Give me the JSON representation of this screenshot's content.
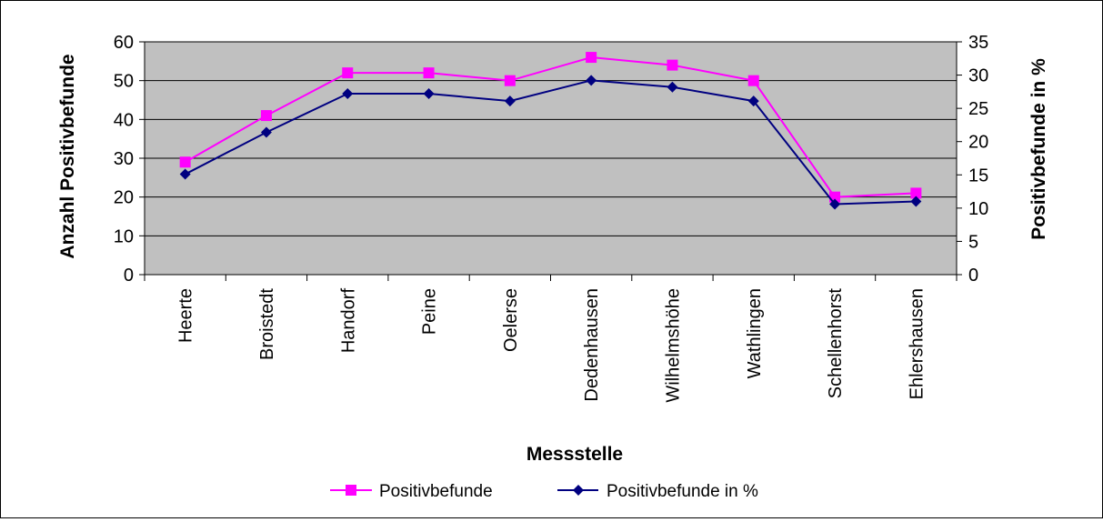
{
  "chart_data": {
    "type": "line",
    "xlabel": "Messstelle",
    "ylabel": "Anzahl Positivbefunde",
    "y2label": "Positivbefunde in %",
    "categories": [
      "Heerte",
      "Broistedt",
      "Handorf",
      "Peine",
      "Oelerse",
      "Dedenhausen",
      "Wilhelmshöhe",
      "Wathlingen",
      "Schellenhorst",
      "Ehlershausen"
    ],
    "ylim": [
      0,
      60
    ],
    "y2lim": [
      0,
      35
    ],
    "yticks": [
      0,
      10,
      20,
      30,
      40,
      50,
      60
    ],
    "y2ticks": [
      0,
      5,
      10,
      15,
      20,
      25,
      30,
      35
    ],
    "grid": true,
    "legend_position": "bottom",
    "plot_background": "#c0c0c0",
    "series": [
      {
        "name": "Positivbefunde",
        "axis": "left",
        "color": "#ff00ff",
        "marker": "square",
        "values": [
          29,
          41,
          52,
          52,
          50,
          56,
          54,
          50,
          20,
          21
        ]
      },
      {
        "name": "Positivbefunde in %",
        "axis": "right",
        "color": "#000080",
        "marker": "diamond",
        "values": [
          15.1,
          21.4,
          27.2,
          27.2,
          26.1,
          29.2,
          28.2,
          26.1,
          10.6,
          11.0
        ]
      }
    ]
  }
}
